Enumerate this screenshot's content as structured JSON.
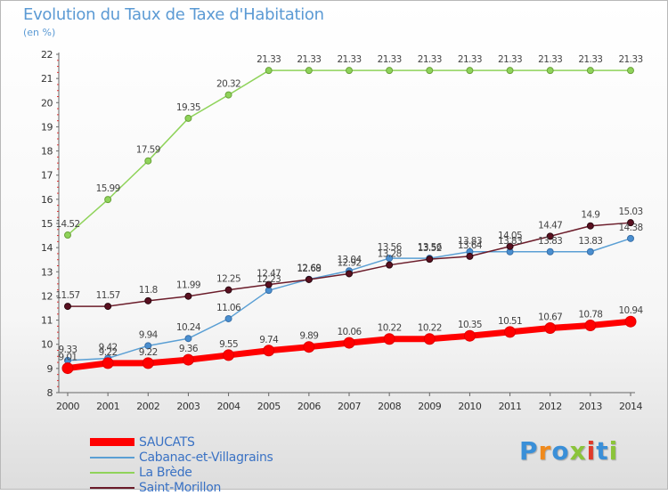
{
  "header": {
    "title": "Evolution du Taux de Taxe d'Habitation",
    "subtitle": "(en %)"
  },
  "logo": {
    "text": "Proxiti"
  },
  "chart_data": {
    "type": "line",
    "title": "Evolution du Taux de Taxe d'Habitation",
    "ylabel": "(en %)",
    "xlabel": "",
    "ylim": [
      8,
      22
    ],
    "yticks": [
      8,
      9,
      10,
      11,
      12,
      13,
      14,
      15,
      16,
      17,
      18,
      19,
      20,
      21,
      22
    ],
    "grid": false,
    "legend_position": "bottom-left",
    "categories": [
      "2000",
      "2001",
      "2002",
      "2003",
      "2004",
      "2005",
      "2006",
      "2007",
      "2008",
      "2009",
      "2010",
      "2011",
      "2012",
      "2013",
      "2014"
    ],
    "series": [
      {
        "name": "SAUCATS",
        "color": "#ff0000",
        "values": [
          9.01,
          9.22,
          9.22,
          9.36,
          9.55,
          9.74,
          9.89,
          10.06,
          10.22,
          10.22,
          10.35,
          10.51,
          10.67,
          10.78,
          10.94
        ]
      },
      {
        "name": "Cabanac-et-Villagrains",
        "color": "#5a9fd4",
        "values": [
          9.33,
          9.42,
          9.94,
          10.24,
          11.06,
          12.23,
          12.69,
          13.04,
          13.56,
          13.56,
          13.83,
          13.83,
          13.83,
          13.83,
          14.38
        ]
      },
      {
        "name": "La Brède",
        "color": "#8fd35a",
        "values": [
          14.52,
          15.99,
          17.59,
          19.35,
          20.32,
          21.33,
          21.33,
          21.33,
          21.33,
          21.33,
          21.33,
          21.33,
          21.33,
          21.33,
          21.33
        ]
      },
      {
        "name": "Saint-Morillon",
        "color": "#6b1c2a",
        "values": [
          11.57,
          11.57,
          11.8,
          11.99,
          12.25,
          12.47,
          12.68,
          12.92,
          13.28,
          13.52,
          13.64,
          14.05,
          14.47,
          14.9,
          15.03
        ]
      }
    ]
  }
}
